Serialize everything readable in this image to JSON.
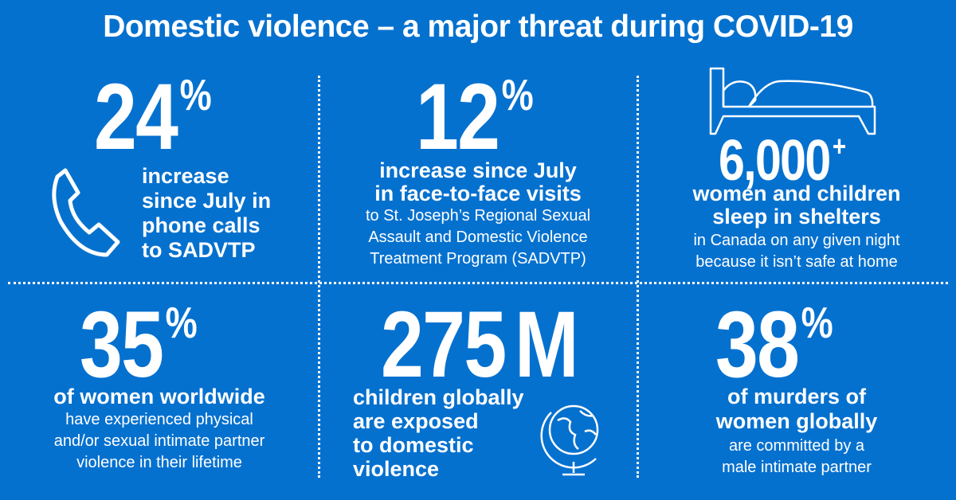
{
  "title": "Domestic violence – a major threat during COVID-19",
  "background_color": "#0571cf",
  "stats": [
    {
      "value": "24",
      "suffix": "%",
      "bold": [
        "increase",
        "since July in",
        "phone calls",
        "to SADVTP"
      ],
      "regular": [],
      "icon": "phone-icon"
    },
    {
      "value": "12",
      "suffix": "%",
      "bold": [
        "increase since July",
        "in face-to-face visits"
      ],
      "regular": [
        "to St. Joseph’s Regional Sexual",
        "Assault and Domestic Violence",
        "Treatment Program (SADVTP)"
      ]
    },
    {
      "value": "6,000",
      "suffix": "+",
      "bold": [
        "women and children",
        "sleep in shelters"
      ],
      "regular": [
        "in Canada on any given night",
        "because it isn’t safe at home"
      ],
      "icon": "bed-icon"
    },
    {
      "value": "35",
      "suffix": "%",
      "bold": [
        "of women worldwide"
      ],
      "regular": [
        "have experienced physical",
        "and/or sexual intimate partner",
        "violence in their lifetime"
      ]
    },
    {
      "value": "275",
      "suffix": "M",
      "bold": [
        "children globally",
        "are exposed",
        "to domestic",
        "violence"
      ],
      "regular": [],
      "icon": "globe-icon"
    },
    {
      "value": "38",
      "suffix": "%",
      "bold": [
        "of murders of",
        "women globally"
      ],
      "regular": [
        "are committed by a",
        "male intimate partner"
      ]
    }
  ]
}
